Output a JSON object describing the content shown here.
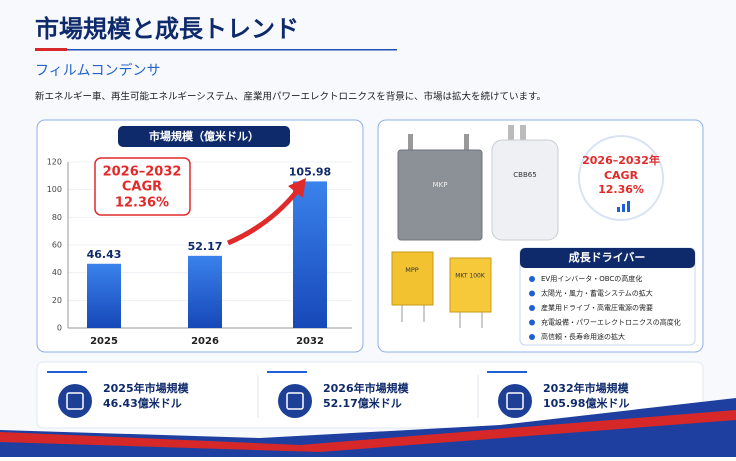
{
  "header": {
    "title": "市場規模と成長トレンド",
    "subtitle": "フィルムコンデンサ",
    "description": "新エネルギー車、再生可能エネルギーシステム、産業用パワーエレクトロニクスを背景に、市場は拡大を続けています。"
  },
  "chart_data": {
    "type": "bar",
    "title": "市場規模（億米ドル）",
    "categories": [
      "2025",
      "2026",
      "2032"
    ],
    "values": [
      46.43,
      52.17,
      105.98
    ],
    "color": "#1f5fd6",
    "ylim": [
      0,
      120
    ],
    "yticks": [
      0,
      20,
      40,
      60,
      80,
      100,
      120
    ],
    "grid": true,
    "annotation": [
      "2026–2032",
      "CAGR",
      "12.36%"
    ]
  },
  "cagr_badge": [
    "2026–2032年",
    "CAGR",
    "12.36%"
  ],
  "capacitor_labels": [
    "MKP",
    "CBB65",
    "MPP",
    "MKT 100K"
  ],
  "drivers": {
    "title": "成長ドライバー",
    "items": [
      "EV用インバータ・OBCの高度化",
      "太陽光・風力・蓄電システムの拡大",
      "産業用ドライブ・高電圧電源の需要",
      "充電設備・パワーエレクトロニクスの高度化",
      "高信頼・長寿命用途の拡大"
    ]
  },
  "stats": [
    {
      "label": "2025年市場規模",
      "value": "46.43億米ドル"
    },
    {
      "label": "2026年市場規模",
      "value": "52.17億米ドル"
    },
    {
      "label": "2032年市場規模",
      "value": "105.98億米ドル"
    }
  ]
}
